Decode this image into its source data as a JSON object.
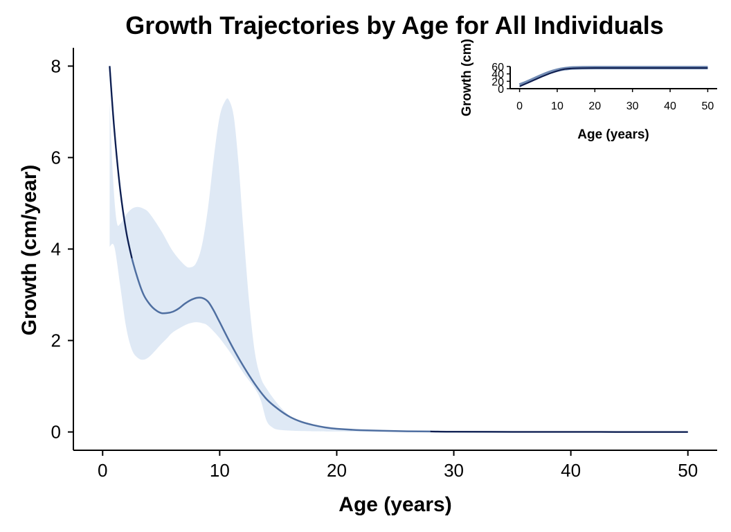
{
  "chart_data": [
    {
      "type": "line",
      "title": "Growth Trajectories by Age for All Individuals",
      "xlabel": "Age (years)",
      "ylabel": "Growth (cm/year)",
      "xlim": [
        -2.5,
        52.5
      ],
      "ylim": [
        -0.4,
        8.4
      ],
      "x_ticks": [
        0,
        10,
        20,
        30,
        40,
        50
      ],
      "y_ticks": [
        0,
        2,
        4,
        6,
        8
      ],
      "grid": false,
      "colors": {
        "mean_line": "#4f6fa1",
        "line_dark": "#0d1b4c",
        "band": "#dfe9f5"
      },
      "series": [
        {
          "role": "mean",
          "x": [
            0.6,
            1,
            1.5,
            2,
            2.5,
            3,
            3.5,
            4,
            4.5,
            5,
            5.5,
            6,
            6.5,
            7,
            7.5,
            8,
            8.5,
            9,
            9.5,
            10,
            11,
            12,
            13,
            14,
            15,
            16,
            17,
            18,
            19,
            20,
            22,
            24,
            26,
            28,
            30,
            35,
            40,
            45,
            50
          ],
          "y": [
            8.0,
            6.6,
            5.3,
            4.4,
            3.8,
            3.35,
            3.0,
            2.8,
            2.67,
            2.6,
            2.6,
            2.63,
            2.7,
            2.8,
            2.88,
            2.93,
            2.93,
            2.85,
            2.65,
            2.4,
            1.9,
            1.45,
            1.05,
            0.72,
            0.5,
            0.33,
            0.22,
            0.15,
            0.1,
            0.07,
            0.04,
            0.025,
            0.015,
            0.01,
            0.005,
            0.002,
            0.001,
            0.0,
            0.0
          ]
        },
        {
          "role": "band_upper",
          "x": [
            0.6,
            0.9,
            1.2,
            1.5,
            2,
            2.5,
            3,
            3.5,
            4,
            5,
            6,
            7,
            7.5,
            8,
            8.5,
            9,
            9.5,
            10,
            10.5,
            10.8,
            11.2,
            11.6,
            12,
            12.5,
            13,
            13.5,
            14,
            15,
            16,
            17,
            18,
            20,
            25,
            30,
            40,
            50
          ],
          "y": [
            7.2,
            5.5,
            4.6,
            4.55,
            4.75,
            4.88,
            4.92,
            4.88,
            4.78,
            4.4,
            3.95,
            3.65,
            3.6,
            3.7,
            4.1,
            4.9,
            6.0,
            6.9,
            7.25,
            7.25,
            6.9,
            5.9,
            4.5,
            2.9,
            1.75,
            1.2,
            0.95,
            0.6,
            0.35,
            0.22,
            0.14,
            0.08,
            0.03,
            0.01,
            0.0,
            0.0
          ]
        },
        {
          "role": "band_lower",
          "x": [
            0.6,
            1,
            1.5,
            2,
            2.5,
            3,
            3.5,
            4,
            4.5,
            5,
            5.5,
            6,
            7,
            7.5,
            8,
            8.5,
            9,
            10,
            11,
            12,
            13,
            13.5,
            14,
            14.5,
            15,
            16,
            17,
            18,
            20,
            25,
            30,
            40,
            50
          ],
          "y": [
            4.05,
            4.05,
            3.2,
            2.3,
            1.8,
            1.62,
            1.58,
            1.65,
            1.78,
            1.92,
            2.05,
            2.18,
            2.33,
            2.38,
            2.4,
            2.38,
            2.32,
            2.05,
            1.7,
            1.3,
            0.95,
            0.7,
            0.25,
            0.1,
            0.05,
            0.03,
            0.02,
            0.015,
            0.01,
            0.005,
            0.0,
            0.0,
            0.0
          ]
        }
      ]
    },
    {
      "type": "line",
      "role": "inset",
      "xlabel": "Age (years)",
      "ylabel": "Growth (cm)",
      "xlim": [
        -2.5,
        52.5
      ],
      "ylim": [
        0,
        60
      ],
      "x_ticks": [
        0,
        10,
        20,
        30,
        40,
        50
      ],
      "y_ticks": [
        0,
        20,
        40,
        60
      ],
      "series": [
        {
          "x": [
            0,
            2,
            4,
            6,
            8,
            10,
            12,
            14,
            16,
            20,
            30,
            50
          ],
          "y": [
            10,
            18,
            27,
            36,
            44,
            50,
            54,
            56,
            56.5,
            57,
            57,
            57
          ]
        },
        {
          "x": [
            0,
            2,
            4,
            6,
            8,
            10,
            12,
            14,
            16,
            20,
            30,
            50
          ],
          "y": [
            6,
            15,
            24,
            33,
            41,
            48,
            53,
            55,
            55.5,
            56,
            56,
            56
          ]
        }
      ]
    }
  ]
}
